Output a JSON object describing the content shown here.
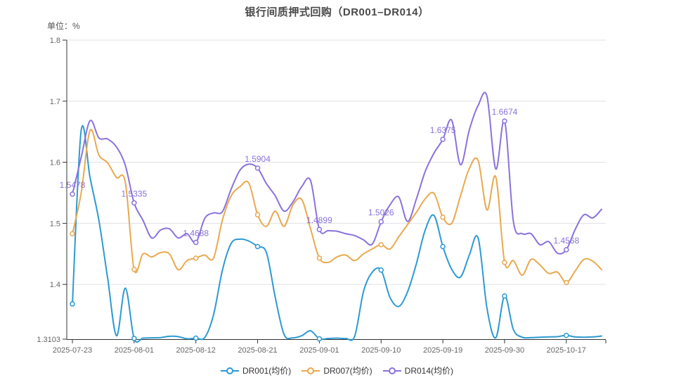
{
  "title": "银行间质押式回购（DR001–DR014）",
  "unit_label": "单位：%",
  "colors": {
    "dr001": "#2D9AD2",
    "dr007": "#E9A94F",
    "dr014": "#8B72DC",
    "annotation": "#8B72DC",
    "axis_line": "#333333",
    "grid_line": "#E0E0E6",
    "tick_label": "#666666",
    "title_text": "#4A4A4A"
  },
  "legend": {
    "items": [
      {
        "label": "DR001(均价)",
        "color": "#2D9AD2"
      },
      {
        "label": "DR007(均价)",
        "color": "#E9A94F"
      },
      {
        "label": "DR014(均价)",
        "color": "#8B72DC"
      }
    ]
  },
  "axis": {
    "y_ticks": [
      {
        "label": "1.8",
        "value": 1.8,
        "grid": true
      },
      {
        "label": "1.7",
        "value": 1.7,
        "grid": true
      },
      {
        "label": "1.6",
        "value": 1.6,
        "grid": true
      },
      {
        "label": "1.5",
        "value": 1.5,
        "grid": true
      },
      {
        "label": "1.4",
        "value": 1.4,
        "grid": true
      },
      {
        "label": "1.3103",
        "value": 1.3103,
        "grid": false
      }
    ],
    "x_ticks": [
      {
        "label": "2025-07-23",
        "index": 0
      },
      {
        "label": "2025-08-01",
        "index": 7
      },
      {
        "label": "2025-08-12",
        "index": 14
      },
      {
        "label": "2025-08-21",
        "index": 21
      },
      {
        "label": "2025-09-01",
        "index": 28
      },
      {
        "label": "2025-09-10",
        "index": 35
      },
      {
        "label": "2025-09-19",
        "index": 42
      },
      {
        "label": "2025-09-30",
        "index": 49
      },
      {
        "label": "2025-10-17",
        "index": 56
      }
    ]
  },
  "chart_data": {
    "type": "line",
    "title": "银行间质押式回购（DR001–DR014）",
    "xlabel": "",
    "ylabel": "单位：%",
    "ylim": [
      1.3103,
      1.8
    ],
    "grid": true,
    "legend_position": "bottom",
    "smooth": true,
    "x": [
      "2025-07-23",
      "2025-07-24",
      "2025-07-25",
      "2025-07-28",
      "2025-07-29",
      "2025-07-30",
      "2025-07-31",
      "2025-08-01",
      "2025-08-04",
      "2025-08-05",
      "2025-08-06",
      "2025-08-07",
      "2025-08-08",
      "2025-08-11",
      "2025-08-12",
      "2025-08-13",
      "2025-08-14",
      "2025-08-15",
      "2025-08-18",
      "2025-08-19",
      "2025-08-20",
      "2025-08-21",
      "2025-08-22",
      "2025-08-25",
      "2025-08-26",
      "2025-08-27",
      "2025-08-28",
      "2025-08-29",
      "2025-09-01",
      "2025-09-02",
      "2025-09-03",
      "2025-09-04",
      "2025-09-05",
      "2025-09-08",
      "2025-09-09",
      "2025-09-10",
      "2025-09-11",
      "2025-09-12",
      "2025-09-15",
      "2025-09-16",
      "2025-09-17",
      "2025-09-18",
      "2025-09-19",
      "2025-09-22",
      "2025-09-23",
      "2025-09-24",
      "2025-09-25",
      "2025-09-26",
      "2025-09-29",
      "2025-09-30",
      "2025-10-09",
      "2025-10-10",
      "2025-10-13",
      "2025-10-14",
      "2025-10-15",
      "2025-10-16",
      "2025-10-17",
      "2025-10-20",
      "2025-10-21",
      "2025-10-22",
      "2025-10-23"
    ],
    "series": [
      {
        "name": "DR001(均价)",
        "color": "#2D9AD2",
        "values": [
          1.368,
          1.652,
          1.575,
          1.505,
          1.41,
          1.316,
          1.394,
          1.3115,
          1.312,
          1.3125,
          1.313,
          1.315,
          1.3145,
          1.311,
          1.312,
          1.313,
          1.35,
          1.423,
          1.467,
          1.474,
          1.471,
          1.462,
          1.452,
          1.379,
          1.318,
          1.3125,
          1.316,
          1.324,
          1.311,
          1.3115,
          1.312,
          1.3115,
          1.315,
          1.388,
          1.42,
          1.4235,
          1.379,
          1.364,
          1.388,
          1.434,
          1.489,
          1.513,
          1.462,
          1.425,
          1.412,
          1.448,
          1.476,
          1.361,
          1.3126,
          1.381,
          1.326,
          1.3135,
          1.313,
          1.3135,
          1.314,
          1.3145,
          1.3165,
          1.314,
          1.3135,
          1.314,
          1.3155
        ]
      },
      {
        "name": "DR007(均价)",
        "color": "#E9A94F",
        "values": [
          1.483,
          1.55,
          1.652,
          1.612,
          1.599,
          1.575,
          1.567,
          1.4245,
          1.45,
          1.445,
          1.452,
          1.45,
          1.424,
          1.439,
          1.443,
          1.448,
          1.443,
          1.505,
          1.545,
          1.56,
          1.566,
          1.514,
          1.495,
          1.52,
          1.495,
          1.53,
          1.539,
          1.491,
          1.443,
          1.436,
          1.445,
          1.448,
          1.439,
          1.45,
          1.458,
          1.465,
          1.458,
          1.478,
          1.498,
          1.518,
          1.54,
          1.549,
          1.51,
          1.5,
          1.545,
          1.59,
          1.603,
          1.522,
          1.576,
          1.436,
          1.439,
          1.415,
          1.441,
          1.432,
          1.418,
          1.42,
          1.403,
          1.422,
          1.441,
          1.438,
          1.424
        ]
      },
      {
        "name": "DR014(均价)",
        "color": "#8B72DC",
        "values": [
          1.5478,
          1.608,
          1.668,
          1.64,
          1.638,
          1.625,
          1.595,
          1.5335,
          1.505,
          1.476,
          1.489,
          1.491,
          1.476,
          1.483,
          1.4688,
          1.508,
          1.517,
          1.519,
          1.556,
          1.587,
          1.597,
          1.5904,
          1.565,
          1.545,
          1.52,
          1.535,
          1.56,
          1.57,
          1.4899,
          1.488,
          1.487,
          1.483,
          1.48,
          1.473,
          1.466,
          1.5026,
          1.53,
          1.543,
          1.503,
          1.54,
          1.585,
          1.615,
          1.6375,
          1.669,
          1.596,
          1.653,
          1.693,
          1.708,
          1.589,
          1.6674,
          1.503,
          1.483,
          1.483,
          1.465,
          1.47,
          1.451,
          1.4568,
          1.49,
          1.514,
          1.509,
          1.523
        ]
      }
    ],
    "marker_indices": [
      0,
      7,
      14,
      21,
      28,
      35,
      42,
      49,
      56
    ],
    "annotations": [
      {
        "index": 0,
        "series": "DR014(均价)",
        "text": "1.5478",
        "value": 1.5478
      },
      {
        "index": 7,
        "series": "DR014(均价)",
        "text": "1.5335",
        "value": 1.5335
      },
      {
        "index": 14,
        "series": "DR014(均价)",
        "text": "1.4688",
        "value": 1.4688
      },
      {
        "index": 21,
        "series": "DR014(均价)",
        "text": "1.5904",
        "value": 1.5904
      },
      {
        "index": 28,
        "series": "DR014(均价)",
        "text": "1.4899",
        "value": 1.4899
      },
      {
        "index": 35,
        "series": "DR014(均价)",
        "text": "1.5026",
        "value": 1.5026
      },
      {
        "index": 42,
        "series": "DR014(均价)",
        "text": "1.6375",
        "value": 1.6375
      },
      {
        "index": 49,
        "series": "DR014(均价)",
        "text": "1.6674",
        "value": 1.6674
      },
      {
        "index": 56,
        "series": "DR014(均价)",
        "text": "1.4568",
        "value": 1.4568
      }
    ]
  }
}
